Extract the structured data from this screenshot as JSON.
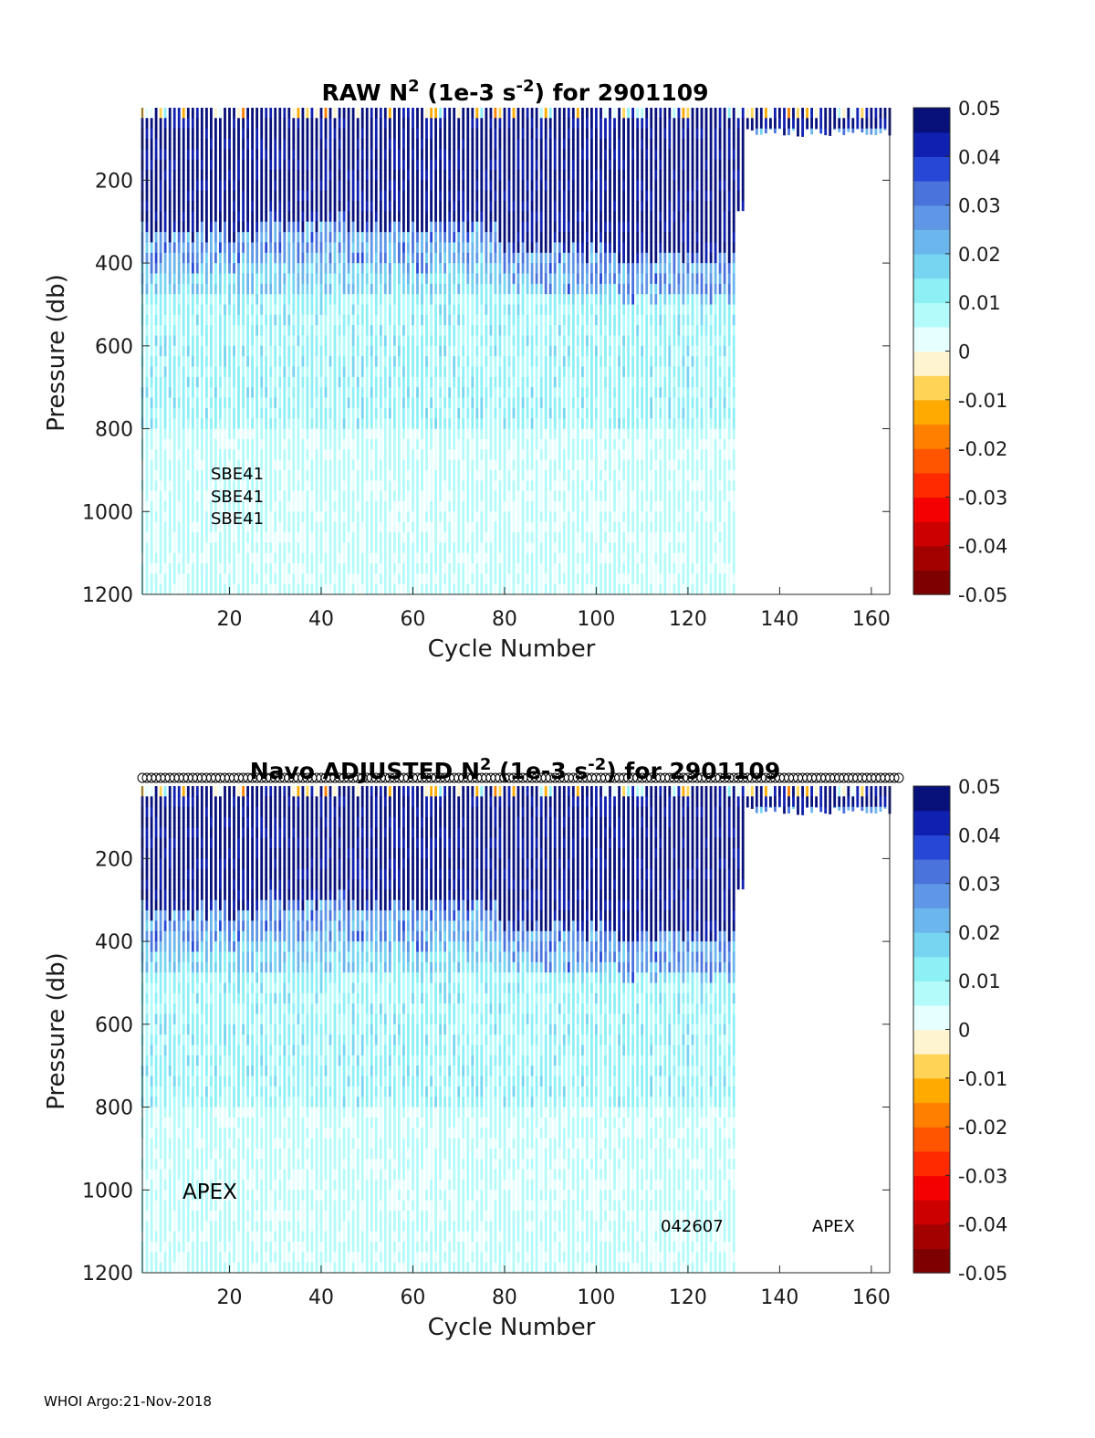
{
  "footer": "WHOI Argo:21-Nov-2018",
  "colors": {
    "palette": [
      "#7f0000",
      "#a30000",
      "#cc0000",
      "#f50000",
      "#ff2a00",
      "#ff5500",
      "#ff8000",
      "#ffaa00",
      "#ffd355",
      "#fff4d0",
      "#e6ffff",
      "#b3fbfb",
      "#8cf0f5",
      "#76d5f0",
      "#6bb6ec",
      "#5f97e6",
      "#4a74dc",
      "#2747d6",
      "#1020b0",
      "#08107a"
    ],
    "marker_stroke": "#000000"
  },
  "chart_data": [
    {
      "type": "heatmap",
      "title_prefix": "RAW N",
      "title_sup1": "2",
      "title_mid": " (1e-3 s",
      "title_sup2": "-2",
      "title_suffix": ") for 2901109",
      "xlabel": "Cycle Number",
      "ylabel": "Pressure (db)",
      "xlim": [
        1,
        164
      ],
      "ylim": [
        1200,
        25
      ],
      "xticks": [
        "20",
        "40",
        "60",
        "80",
        "100",
        "120",
        "140",
        "160"
      ],
      "yticks": [
        "200",
        "400",
        "600",
        "800",
        "1000",
        "1200"
      ],
      "colorbar": {
        "range": [
          -0.05,
          0.05
        ],
        "ticks": [
          "0.05",
          "0.04",
          "0.03",
          "0.02",
          "0.01",
          "0",
          "-0.01",
          "-0.02",
          "-0.03",
          "-0.04",
          "-0.05"
        ]
      },
      "full_profile_cycles": [
        1,
        130
      ],
      "shallow_profile_cycles": [
        131,
        164
      ],
      "surface_strong_layer_bottom_db": [
        310,
        290,
        300,
        360,
        380
      ],
      "annotations": [
        "SBE41",
        "SBE41",
        "SBE41"
      ],
      "markers": false
    },
    {
      "type": "heatmap",
      "title_prefix": "Navo  ADJUSTED N",
      "title_sup1": "2",
      "title_mid": " (1e-3 s",
      "title_sup2": "-2",
      "title_suffix": ") for 2901109",
      "xlabel": "Cycle Number",
      "ylabel": "Pressure (db)",
      "xlim": [
        1,
        164
      ],
      "ylim": [
        1200,
        25
      ],
      "xticks": [
        "20",
        "40",
        "60",
        "80",
        "100",
        "120",
        "140",
        "160"
      ],
      "yticks": [
        "200",
        "400",
        "600",
        "800",
        "1000",
        "1200"
      ],
      "colorbar": {
        "range": [
          -0.05,
          0.05
        ],
        "ticks": [
          "0.05",
          "0.04",
          "0.03",
          "0.02",
          "0.01",
          "0",
          "-0.01",
          "-0.02",
          "-0.03",
          "-0.04",
          "-0.05"
        ]
      },
      "full_profile_cycles": [
        1,
        130
      ],
      "shallow_profile_cycles": [
        131,
        164
      ],
      "surface_strong_layer_bottom_db": [
        310,
        290,
        300,
        360,
        380
      ],
      "annotations": [
        "APEX",
        "042607",
        "APEX"
      ],
      "markers": true
    }
  ]
}
